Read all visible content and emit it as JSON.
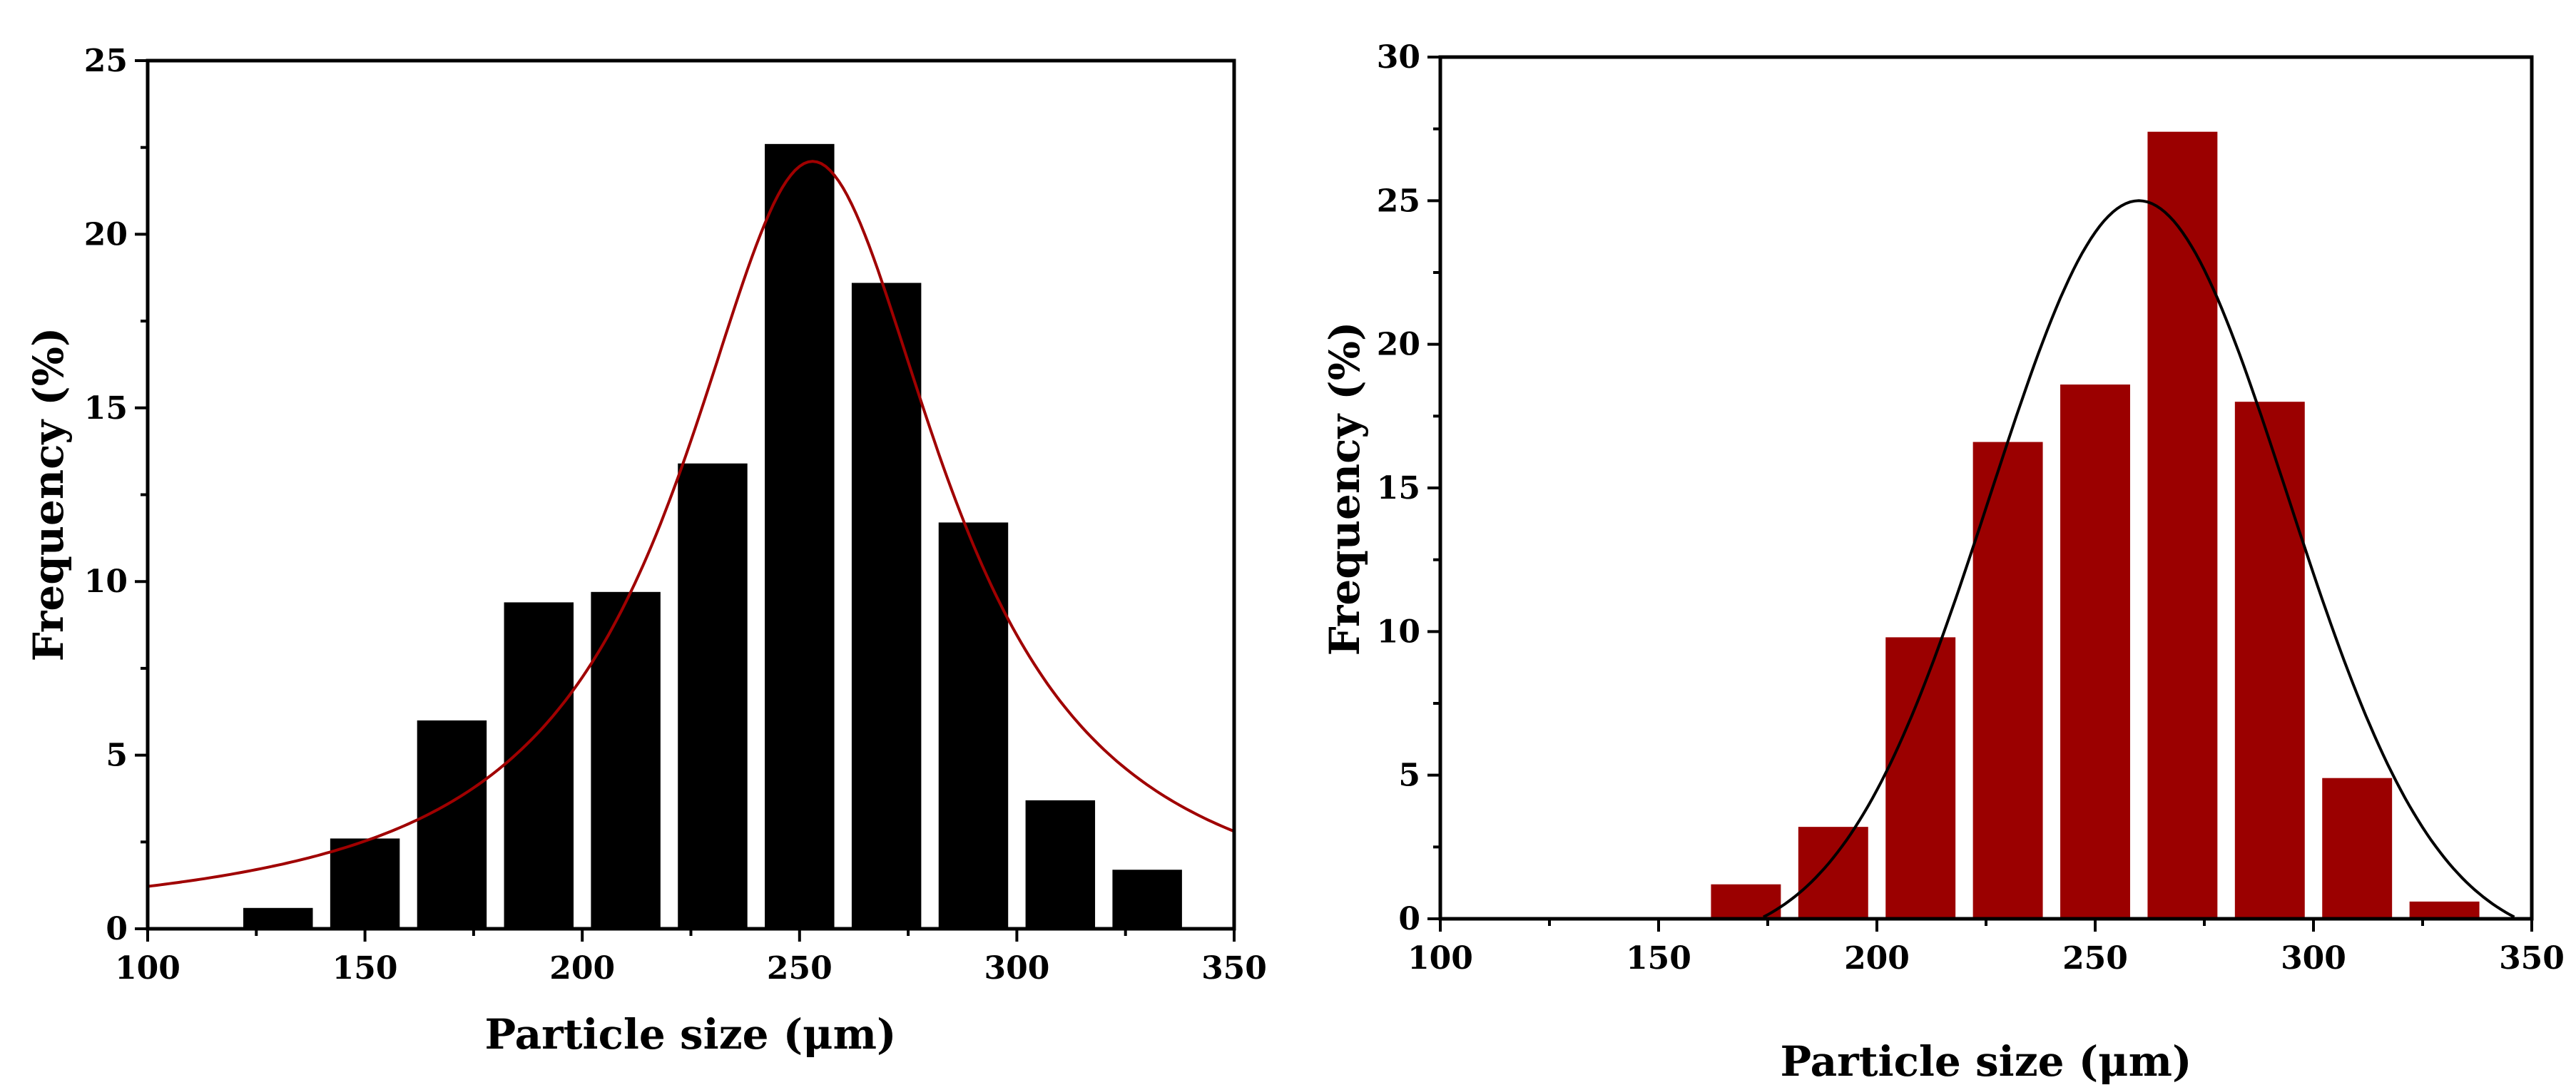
{
  "chart_data": [
    {
      "type": "bar",
      "xlabel": "Particle size (μm)",
      "ylabel": "Frequency (%)",
      "xlim": [
        100,
        350
      ],
      "ylim": [
        0,
        25
      ],
      "xticks": [
        "100",
        "150",
        "200",
        "250",
        "300",
        "350"
      ],
      "yticks": [
        "0",
        "5",
        "10",
        "15",
        "20",
        "25"
      ],
      "bar_color": "#000000",
      "x": [
        130,
        150,
        170,
        190,
        210,
        230,
        250,
        270,
        290,
        310,
        330
      ],
      "values": [
        0.6,
        2.6,
        6.0,
        9.4,
        9.7,
        13.4,
        22.6,
        18.6,
        11.7,
        3.7,
        1.7
      ],
      "bin_width": 16,
      "fit": {
        "type": "lorentz",
        "center": 253,
        "peak": 22.1,
        "hwhm": 37,
        "offset": 0,
        "color": "#a00000"
      }
    },
    {
      "type": "bar",
      "xlabel": "Particle size (μm)",
      "ylabel": "Frequency (%)",
      "xlim": [
        100,
        350
      ],
      "ylim": [
        0,
        30
      ],
      "xticks": [
        "100",
        "150",
        "200",
        "250",
        "300",
        "350"
      ],
      "yticks": [
        "0",
        "5",
        "10",
        "15",
        "20",
        "25",
        "30"
      ],
      "bar_color": "#9b0000",
      "x": [
        170,
        190,
        210,
        230,
        250,
        270,
        290,
        310,
        330
      ],
      "values": [
        1.2,
        3.2,
        9.8,
        16.6,
        18.6,
        27.4,
        18.0,
        4.9,
        0.6
      ],
      "bin_width": 16,
      "fit": {
        "type": "gauss",
        "center": 260,
        "peak": 26,
        "sigma": 34,
        "offset": -1.0,
        "color": "#000000"
      }
    }
  ]
}
